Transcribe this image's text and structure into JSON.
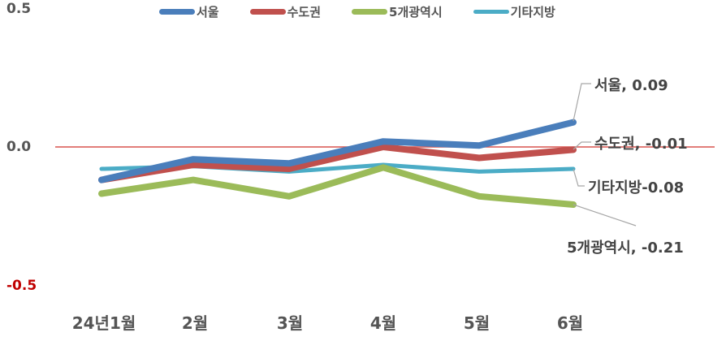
{
  "chart_data": {
    "type": "line",
    "title": "",
    "xlabel": "",
    "ylabel": "",
    "categories": [
      "24년1월",
      "2월",
      "3월",
      "4월",
      "5월",
      "6월"
    ],
    "ylim": [
      -0.5,
      0.5
    ],
    "yticks": [
      "0.5",
      "0.0",
      "-0.5"
    ],
    "grid": false,
    "zero_line_color": "#d9534f",
    "legend_position": "top",
    "series": [
      {
        "name": "서울",
        "color": "#4a7ebb",
        "width": 8,
        "values": [
          -0.12,
          -0.045,
          -0.06,
          0.02,
          0.005,
          0.09
        ]
      },
      {
        "name": "수도권",
        "color": "#c0504d",
        "width": 8,
        "values": [
          -0.12,
          -0.065,
          -0.08,
          0.0,
          -0.04,
          -0.01
        ]
      },
      {
        "name": "5개광역시",
        "color": "#9bbb59",
        "width": 8,
        "values": [
          -0.17,
          -0.12,
          -0.18,
          -0.075,
          -0.18,
          -0.21
        ]
      },
      {
        "name": "기타지방",
        "color": "#4bacc6",
        "width": 5,
        "values": [
          -0.08,
          -0.07,
          -0.09,
          -0.065,
          -0.09,
          -0.08
        ]
      }
    ],
    "annotations": [
      {
        "series": "서울",
        "text": "서울, 0.09"
      },
      {
        "series": "수도권",
        "text": "수도권, -0.01"
      },
      {
        "series": "기타지방",
        "text": "기타지방-0.08"
      },
      {
        "series": "5개광역시",
        "text": "5개광역시, -0.21"
      }
    ]
  }
}
